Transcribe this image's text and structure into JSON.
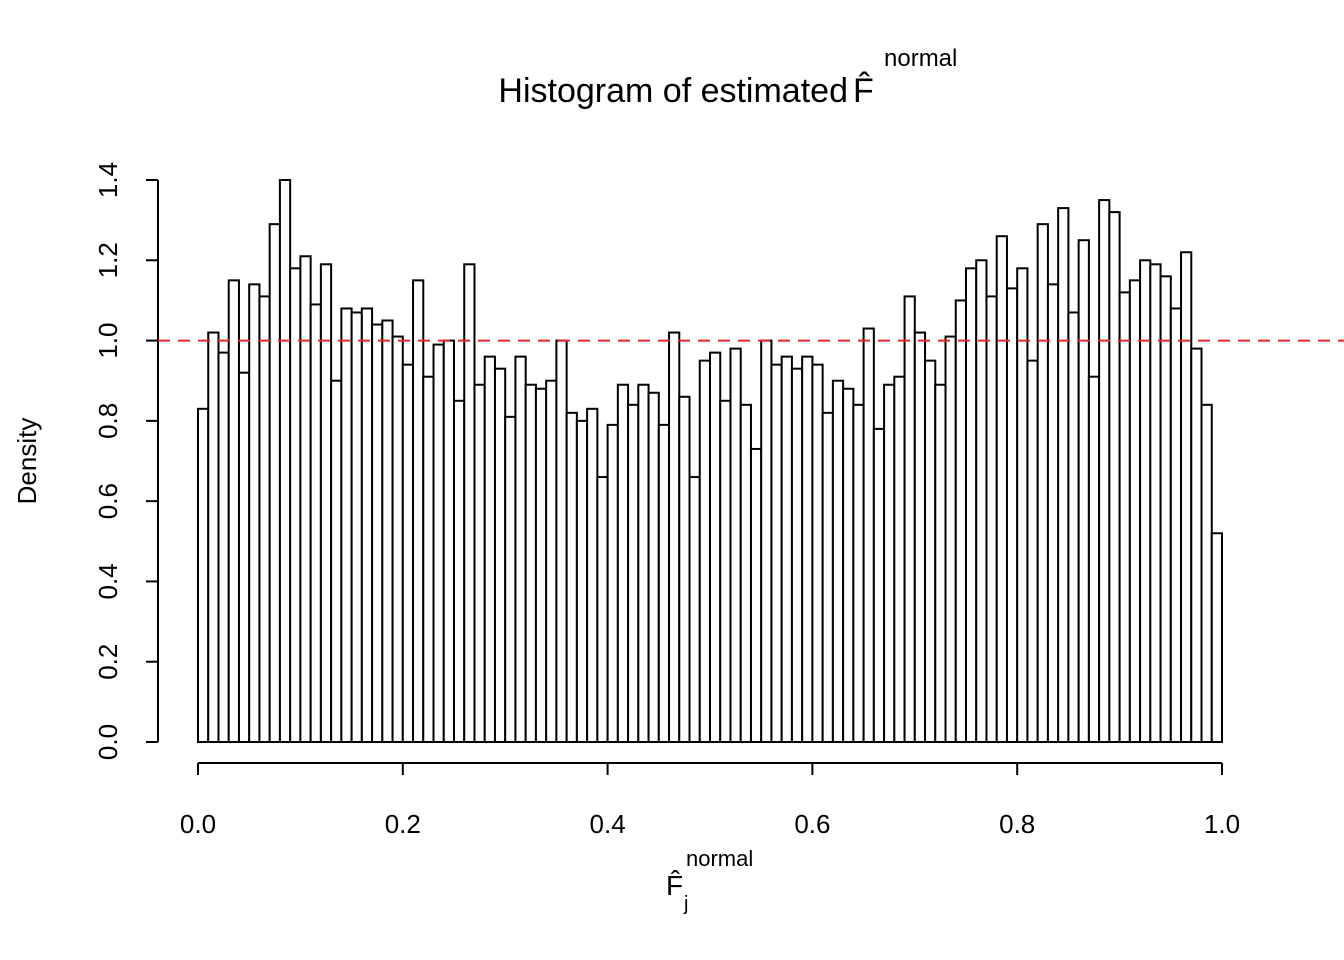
{
  "chart_data": {
    "type": "histogram",
    "title": "Histogram of estimated",
    "title_symbol": "F̂",
    "title_superscript": "normal",
    "x_label": "F̂",
    "x_label_subscript": "j",
    "x_label_superscript": "normal",
    "y_label": "Density",
    "bins": [
      0,
      0.01,
      0.02,
      0.03,
      0.04,
      0.05,
      0.06,
      0.07,
      0.08,
      0.09,
      0.1,
      0.11,
      0.12,
      0.13,
      0.14,
      0.15,
      0.16,
      0.17,
      0.18,
      0.19,
      0.2,
      0.21,
      0.22,
      0.23,
      0.24,
      0.25,
      0.26,
      0.27,
      0.28,
      0.29,
      0.3,
      0.31,
      0.32,
      0.33,
      0.34,
      0.35,
      0.36,
      0.37,
      0.38,
      0.39,
      0.4,
      0.41,
      0.42,
      0.43,
      0.44,
      0.45,
      0.46,
      0.47,
      0.48,
      0.49,
      0.5,
      0.51,
      0.52,
      0.53,
      0.54,
      0.55,
      0.56,
      0.57,
      0.58,
      0.59,
      0.6,
      0.61,
      0.62,
      0.63,
      0.64,
      0.65,
      0.66,
      0.67,
      0.68,
      0.69,
      0.7,
      0.71,
      0.72,
      0.73,
      0.74,
      0.75,
      0.76,
      0.77,
      0.78,
      0.79,
      0.8,
      0.81,
      0.82,
      0.83,
      0.84,
      0.85,
      0.86,
      0.87,
      0.88,
      0.89,
      0.9,
      0.91,
      0.92,
      0.93,
      0.94,
      0.95,
      0.96,
      0.97,
      0.98,
      0.99,
      1
    ],
    "values": [
      0.83,
      1.02,
      0.97,
      1.15,
      0.92,
      1.14,
      1.11,
      1.29,
      1.4,
      1.18,
      1.21,
      1.09,
      1.19,
      0.9,
      1.08,
      1.07,
      1.08,
      1.04,
      1.05,
      1.01,
      0.94,
      1.15,
      0.91,
      0.99,
      1.0,
      0.85,
      1.19,
      0.89,
      0.96,
      0.93,
      0.81,
      0.96,
      0.89,
      0.88,
      0.9,
      1.0,
      0.82,
      0.8,
      0.83,
      0.66,
      0.79,
      0.89,
      0.84,
      0.89,
      0.87,
      0.79,
      1.02,
      0.86,
      0.66,
      0.95,
      0.97,
      0.85,
      0.98,
      0.84,
      0.73,
      1.0,
      0.94,
      0.96,
      0.93,
      0.96,
      0.94,
      0.82,
      0.9,
      0.88,
      0.84,
      1.03,
      0.78,
      0.89,
      0.91,
      1.11,
      1.02,
      0.95,
      0.89,
      1.01,
      1.1,
      1.18,
      1.2,
      1.11,
      1.26,
      1.13,
      1.18,
      0.95,
      1.29,
      1.14,
      1.33,
      1.07,
      1.25,
      0.91,
      1.35,
      1.32,
      1.12,
      1.15,
      1.2,
      1.19,
      1.16,
      1.08,
      1.22,
      0.98,
      0.84,
      0.52
    ],
    "color": "#ffffff",
    "edge_color": "#000000",
    "xlim": [
      0,
      1
    ],
    "xticks": [
      {
        "value": 0,
        "label": "0.0"
      },
      0.2,
      0.4,
      0.6,
      0.8,
      {
        "value": 1,
        "label": "1.0"
      }
    ],
    "ylim": [
      0,
      1.4
    ],
    "yticks": [
      {
        "value": 0,
        "label": "0.0"
      },
      0.2,
      0.4,
      0.6,
      0.8,
      {
        "value": 1,
        "label": "1.0"
      },
      1.2,
      1.4
    ],
    "reference_line": {
      "value": 1,
      "color": "#e8262b"
    }
  }
}
